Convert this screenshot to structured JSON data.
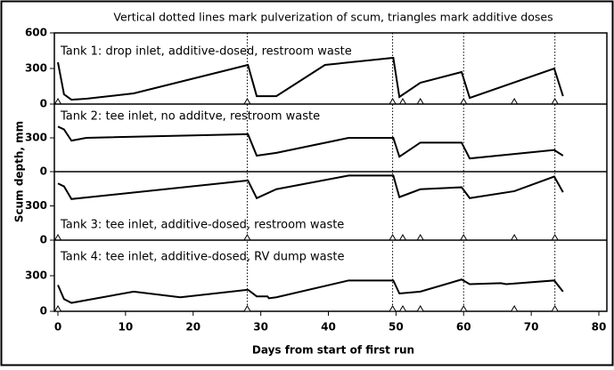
{
  "chart_data": {
    "type": "line",
    "title": "Vertical dotted lines mark pulverization of scum, triangles mark additive doses",
    "x_label": "Days from start of first run",
    "y_label": "Scum depth, mm",
    "xlim": [
      0,
      80
    ],
    "xticks": [
      0,
      10,
      20,
      30,
      40,
      50,
      60,
      70,
      80
    ],
    "color": "#000000",
    "pulverizations": [
      28,
      49.5,
      60,
      73.5
    ],
    "panels": [
      {
        "label": "Tank 1: drop inlet, additive-dosed, restroom waste",
        "ylim": [
          0,
          600
        ],
        "yticks": [
          0,
          300,
          600
        ],
        "x": [
          0,
          0.9,
          2.0,
          4.2,
          11.2,
          28.1,
          29.4,
          32.3,
          39.5,
          49.6,
          50.5,
          53.6,
          59.7,
          60.9,
          73.4,
          74.7
        ],
        "values": [
          352,
          82,
          37,
          45,
          90,
          330,
          67,
          67,
          330,
          390,
          60,
          180,
          270,
          52,
          300,
          67
        ],
        "doses": [
          0,
          28,
          49.5,
          51,
          53.6,
          60,
          67.5,
          73.5
        ]
      },
      {
        "label": "Tank 2: tee inlet, no additve, restroom waste",
        "ylim": [
          0,
          600
        ],
        "yticks": [
          0,
          300
        ],
        "x": [
          0,
          0.9,
          2.0,
          4.2,
          28.1,
          29.4,
          32.3,
          43.0,
          49.6,
          50.5,
          53.6,
          59.7,
          60.9,
          73.4,
          74.7
        ],
        "values": [
          400,
          375,
          275,
          300,
          333,
          142,
          167,
          300,
          300,
          133,
          258,
          258,
          117,
          192,
          142
        ],
        "doses": []
      },
      {
        "label": "Tank 3: tee inlet, additive-dosed, restroom waste",
        "ylim": [
          0,
          600
        ],
        "yticks": [
          0,
          300
        ],
        "x": [
          0,
          0.9,
          2.0,
          28.1,
          29.4,
          32.3,
          43.0,
          49.6,
          50.5,
          53.6,
          59.7,
          60.9,
          67.5,
          73.4,
          74.7
        ],
        "values": [
          497,
          471,
          360,
          523,
          368,
          446,
          566,
          566,
          377,
          446,
          463,
          368,
          429,
          557,
          420
        ],
        "doses": [
          0,
          28,
          49.5,
          51,
          53.6,
          60,
          67.5,
          73.5
        ]
      },
      {
        "label": "Tank 4: tee inlet, additive-dosed, RV dump waste",
        "ylim": [
          0,
          600
        ],
        "yticks": [
          0,
          300
        ],
        "x": [
          0,
          0.9,
          2.0,
          11.2,
          18.1,
          28.1,
          29.4,
          31.0,
          31.2,
          32.3,
          43.0,
          49.6,
          50.5,
          53.6,
          59.7,
          60.9,
          65.5,
          66.3,
          73.4,
          74.7
        ],
        "values": [
          221,
          103,
          71,
          166,
          118,
          182,
          126,
          126,
          110,
          118,
          260,
          260,
          150,
          166,
          268,
          229,
          237,
          229,
          260,
          166
        ],
        "doses": [
          0,
          28,
          49.5,
          51,
          53.6,
          60,
          67.5,
          73.5
        ]
      }
    ]
  }
}
